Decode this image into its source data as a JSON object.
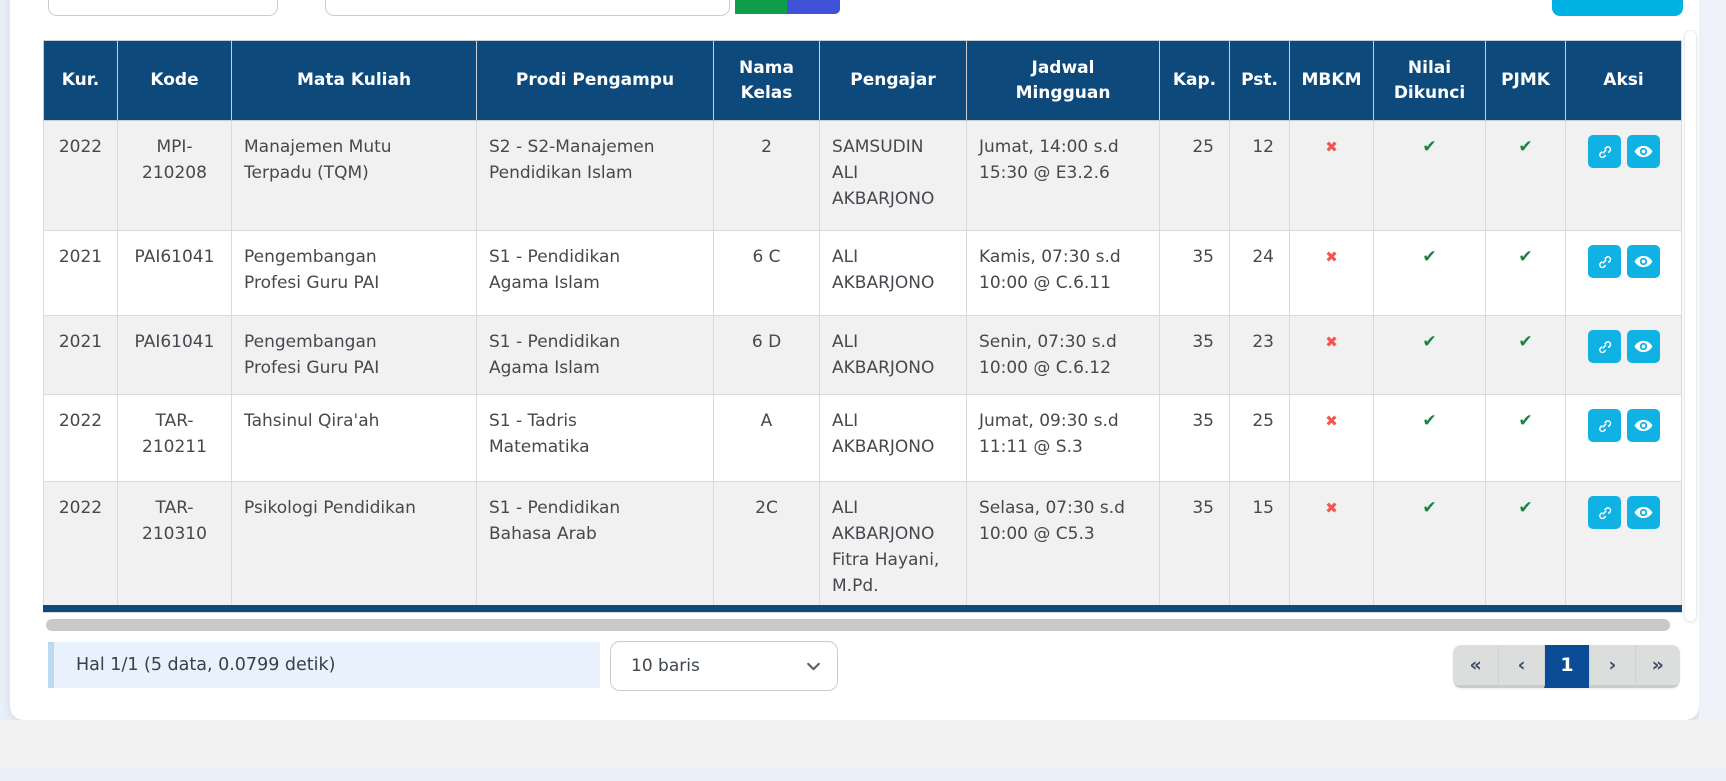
{
  "table": {
    "columns": [
      "Kur.",
      "Kode",
      "Mata Kuliah",
      "Prodi Pengampu",
      "Nama Kelas",
      "Pengajar",
      "Jadwal Mingguan",
      "Kap.",
      "Pst.",
      "MBKM",
      "Nilai Dikunci",
      "PJMK",
      "Aksi"
    ],
    "rows": [
      {
        "kur": "2022",
        "kode": "MPI-210208",
        "mata_kuliah": "Manajemen Mutu Terpadu (TQM)",
        "prodi_pengampu": "S2 - S2-Manajemen Pendidikan Islam",
        "nama_kelas": "2",
        "pengajar": "SAMSUDIN ALI AKBARJONO",
        "jadwal_mingguan": "Jumat, 14:00 s.d 15:30 @ E3.2.6",
        "kap": "25",
        "pst": "12",
        "mbkm": false,
        "nilai_dikunci": true,
        "pjmk": true
      },
      {
        "kur": "2021",
        "kode": "PAI61041",
        "mata_kuliah": "Pengembangan Profesi Guru PAI",
        "prodi_pengampu": "S1 - Pendidikan Agama Islam",
        "nama_kelas": "6 C",
        "pengajar": "ALI AKBARJONO",
        "jadwal_mingguan": "Kamis, 07:30 s.d 10:00 @ C.6.11",
        "kap": "35",
        "pst": "24",
        "mbkm": false,
        "nilai_dikunci": true,
        "pjmk": true
      },
      {
        "kur": "2021",
        "kode": "PAI61041",
        "mata_kuliah": "Pengembangan Profesi Guru PAI",
        "prodi_pengampu": "S1 - Pendidikan Agama Islam",
        "nama_kelas": "6 D",
        "pengajar": "ALI AKBARJONO",
        "jadwal_mingguan": "Senin, 07:30 s.d 10:00 @ C.6.12",
        "kap": "35",
        "pst": "23",
        "mbkm": false,
        "nilai_dikunci": true,
        "pjmk": true
      },
      {
        "kur": "2022",
        "kode": "TAR-210211",
        "mata_kuliah": "Tahsinul Qira'ah",
        "prodi_pengampu": "S1 - Tadris Matematika",
        "nama_kelas": "A",
        "pengajar": "ALI AKBARJONO",
        "jadwal_mingguan": "Jumat, 09:30 s.d 11:11 @ S.3",
        "kap": "35",
        "pst": "25",
        "mbkm": false,
        "nilai_dikunci": true,
        "pjmk": true
      },
      {
        "kur": "2022",
        "kode": "TAR-210310",
        "mata_kuliah": "Psikologi Pendidikan",
        "prodi_pengampu": "S1 - Pendidikan Bahasa Arab",
        "nama_kelas": "2C",
        "pengajar": "ALI AKBARJONO Fitra Hayani, M.Pd.",
        "jadwal_mingguan": "Selasa, 07:30 s.d 10:00 @ C5.3",
        "kap": "35",
        "pst": "15",
        "mbkm": false,
        "nilai_dikunci": true,
        "pjmk": true
      }
    ],
    "action_icons": [
      "link",
      "eye"
    ]
  },
  "icons": {
    "check": "✔",
    "cross": "✖"
  },
  "toolbar": {
    "search_value": "",
    "filter_value": ""
  },
  "footer": {
    "info": "Hal 1/1 (5 data, 0.0799 detik)",
    "page_size_selected": "10 baris",
    "pagination": {
      "first": "«",
      "prev": "‹",
      "page": "1",
      "next": "›",
      "last": "»",
      "active": "1"
    }
  },
  "colors": {
    "header_navy": "#0d4a7b",
    "action_cyan": "#10b2e4",
    "check_green": "#178540",
    "cross_red": "#f1594f",
    "button_green": "#109e4b",
    "button_blue": "#4053d8",
    "button_cyan": "#00b1e4",
    "pagination_active": "#0a4c96",
    "info_box_bg": "#e9f2fc"
  }
}
